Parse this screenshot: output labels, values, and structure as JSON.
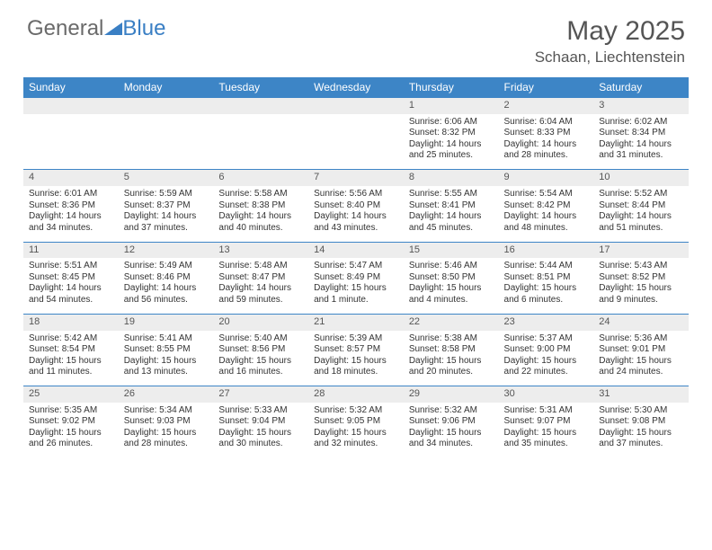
{
  "brand": {
    "part1": "General",
    "part2": "Blue"
  },
  "title": "May 2025",
  "location": "Schaan, Liechtenstein",
  "colors": {
    "header_bg": "#3d85c6",
    "header_text": "#ffffff",
    "daynum_bg": "#ededed",
    "border": "#3d85c6",
    "text": "#333333",
    "logo_gray": "#6a6a6a",
    "logo_blue": "#3a7fc4"
  },
  "weekdays": [
    "Sunday",
    "Monday",
    "Tuesday",
    "Wednesday",
    "Thursday",
    "Friday",
    "Saturday"
  ],
  "weeks": [
    [
      null,
      null,
      null,
      null,
      {
        "n": "1",
        "sr": "Sunrise: 6:06 AM",
        "ss": "Sunset: 8:32 PM",
        "dl1": "Daylight: 14 hours",
        "dl2": "and 25 minutes."
      },
      {
        "n": "2",
        "sr": "Sunrise: 6:04 AM",
        "ss": "Sunset: 8:33 PM",
        "dl1": "Daylight: 14 hours",
        "dl2": "and 28 minutes."
      },
      {
        "n": "3",
        "sr": "Sunrise: 6:02 AM",
        "ss": "Sunset: 8:34 PM",
        "dl1": "Daylight: 14 hours",
        "dl2": "and 31 minutes."
      }
    ],
    [
      {
        "n": "4",
        "sr": "Sunrise: 6:01 AM",
        "ss": "Sunset: 8:36 PM",
        "dl1": "Daylight: 14 hours",
        "dl2": "and 34 minutes."
      },
      {
        "n": "5",
        "sr": "Sunrise: 5:59 AM",
        "ss": "Sunset: 8:37 PM",
        "dl1": "Daylight: 14 hours",
        "dl2": "and 37 minutes."
      },
      {
        "n": "6",
        "sr": "Sunrise: 5:58 AM",
        "ss": "Sunset: 8:38 PM",
        "dl1": "Daylight: 14 hours",
        "dl2": "and 40 minutes."
      },
      {
        "n": "7",
        "sr": "Sunrise: 5:56 AM",
        "ss": "Sunset: 8:40 PM",
        "dl1": "Daylight: 14 hours",
        "dl2": "and 43 minutes."
      },
      {
        "n": "8",
        "sr": "Sunrise: 5:55 AM",
        "ss": "Sunset: 8:41 PM",
        "dl1": "Daylight: 14 hours",
        "dl2": "and 45 minutes."
      },
      {
        "n": "9",
        "sr": "Sunrise: 5:54 AM",
        "ss": "Sunset: 8:42 PM",
        "dl1": "Daylight: 14 hours",
        "dl2": "and 48 minutes."
      },
      {
        "n": "10",
        "sr": "Sunrise: 5:52 AM",
        "ss": "Sunset: 8:44 PM",
        "dl1": "Daylight: 14 hours",
        "dl2": "and 51 minutes."
      }
    ],
    [
      {
        "n": "11",
        "sr": "Sunrise: 5:51 AM",
        "ss": "Sunset: 8:45 PM",
        "dl1": "Daylight: 14 hours",
        "dl2": "and 54 minutes."
      },
      {
        "n": "12",
        "sr": "Sunrise: 5:49 AM",
        "ss": "Sunset: 8:46 PM",
        "dl1": "Daylight: 14 hours",
        "dl2": "and 56 minutes."
      },
      {
        "n": "13",
        "sr": "Sunrise: 5:48 AM",
        "ss": "Sunset: 8:47 PM",
        "dl1": "Daylight: 14 hours",
        "dl2": "and 59 minutes."
      },
      {
        "n": "14",
        "sr": "Sunrise: 5:47 AM",
        "ss": "Sunset: 8:49 PM",
        "dl1": "Daylight: 15 hours",
        "dl2": "and 1 minute."
      },
      {
        "n": "15",
        "sr": "Sunrise: 5:46 AM",
        "ss": "Sunset: 8:50 PM",
        "dl1": "Daylight: 15 hours",
        "dl2": "and 4 minutes."
      },
      {
        "n": "16",
        "sr": "Sunrise: 5:44 AM",
        "ss": "Sunset: 8:51 PM",
        "dl1": "Daylight: 15 hours",
        "dl2": "and 6 minutes."
      },
      {
        "n": "17",
        "sr": "Sunrise: 5:43 AM",
        "ss": "Sunset: 8:52 PM",
        "dl1": "Daylight: 15 hours",
        "dl2": "and 9 minutes."
      }
    ],
    [
      {
        "n": "18",
        "sr": "Sunrise: 5:42 AM",
        "ss": "Sunset: 8:54 PM",
        "dl1": "Daylight: 15 hours",
        "dl2": "and 11 minutes."
      },
      {
        "n": "19",
        "sr": "Sunrise: 5:41 AM",
        "ss": "Sunset: 8:55 PM",
        "dl1": "Daylight: 15 hours",
        "dl2": "and 13 minutes."
      },
      {
        "n": "20",
        "sr": "Sunrise: 5:40 AM",
        "ss": "Sunset: 8:56 PM",
        "dl1": "Daylight: 15 hours",
        "dl2": "and 16 minutes."
      },
      {
        "n": "21",
        "sr": "Sunrise: 5:39 AM",
        "ss": "Sunset: 8:57 PM",
        "dl1": "Daylight: 15 hours",
        "dl2": "and 18 minutes."
      },
      {
        "n": "22",
        "sr": "Sunrise: 5:38 AM",
        "ss": "Sunset: 8:58 PM",
        "dl1": "Daylight: 15 hours",
        "dl2": "and 20 minutes."
      },
      {
        "n": "23",
        "sr": "Sunrise: 5:37 AM",
        "ss": "Sunset: 9:00 PM",
        "dl1": "Daylight: 15 hours",
        "dl2": "and 22 minutes."
      },
      {
        "n": "24",
        "sr": "Sunrise: 5:36 AM",
        "ss": "Sunset: 9:01 PM",
        "dl1": "Daylight: 15 hours",
        "dl2": "and 24 minutes."
      }
    ],
    [
      {
        "n": "25",
        "sr": "Sunrise: 5:35 AM",
        "ss": "Sunset: 9:02 PM",
        "dl1": "Daylight: 15 hours",
        "dl2": "and 26 minutes."
      },
      {
        "n": "26",
        "sr": "Sunrise: 5:34 AM",
        "ss": "Sunset: 9:03 PM",
        "dl1": "Daylight: 15 hours",
        "dl2": "and 28 minutes."
      },
      {
        "n": "27",
        "sr": "Sunrise: 5:33 AM",
        "ss": "Sunset: 9:04 PM",
        "dl1": "Daylight: 15 hours",
        "dl2": "and 30 minutes."
      },
      {
        "n": "28",
        "sr": "Sunrise: 5:32 AM",
        "ss": "Sunset: 9:05 PM",
        "dl1": "Daylight: 15 hours",
        "dl2": "and 32 minutes."
      },
      {
        "n": "29",
        "sr": "Sunrise: 5:32 AM",
        "ss": "Sunset: 9:06 PM",
        "dl1": "Daylight: 15 hours",
        "dl2": "and 34 minutes."
      },
      {
        "n": "30",
        "sr": "Sunrise: 5:31 AM",
        "ss": "Sunset: 9:07 PM",
        "dl1": "Daylight: 15 hours",
        "dl2": "and 35 minutes."
      },
      {
        "n": "31",
        "sr": "Sunrise: 5:30 AM",
        "ss": "Sunset: 9:08 PM",
        "dl1": "Daylight: 15 hours",
        "dl2": "and 37 minutes."
      }
    ]
  ]
}
